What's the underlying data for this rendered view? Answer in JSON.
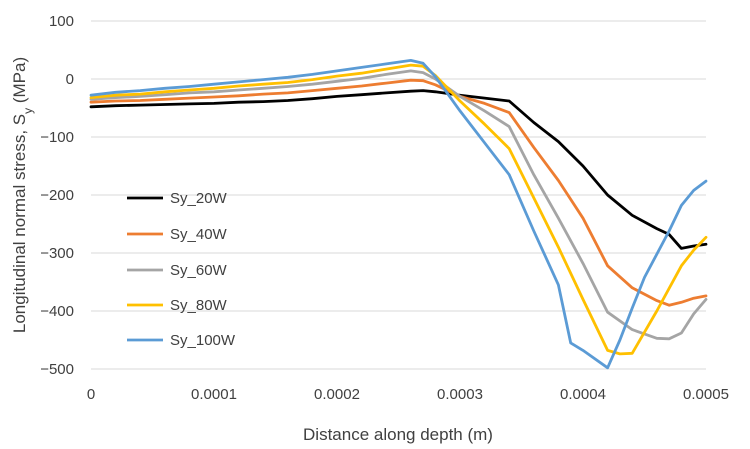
{
  "chart_data": {
    "type": "line",
    "xlabel": "Distance along depth (m)",
    "ylabel": {
      "main": "Longitudinal normal stress, S",
      "sub": "y",
      "unit": " (MPa)"
    },
    "xlim": [
      0,
      0.0005
    ],
    "ylim": [
      -500,
      100
    ],
    "x_ticks": [
      "0",
      "0.0001",
      "0.0002",
      "0.0003",
      "0.0004",
      "0.0005"
    ],
    "y_ticks": [
      "100",
      "0",
      "-100",
      "-200",
      "-300",
      "-400",
      "-500"
    ],
    "grid": "horizontal",
    "legend_position": "left",
    "series": [
      {
        "name": "Sy_20W",
        "color": "#000000",
        "points": [
          [
            0,
            -48
          ],
          [
            2e-05,
            -46
          ],
          [
            4e-05,
            -45
          ],
          [
            6e-05,
            -44
          ],
          [
            8e-05,
            -43
          ],
          [
            0.0001,
            -42
          ],
          [
            0.00012,
            -40
          ],
          [
            0.00014,
            -39
          ],
          [
            0.00016,
            -37
          ],
          [
            0.00018,
            -34
          ],
          [
            0.0002,
            -30
          ],
          [
            0.00022,
            -27
          ],
          [
            0.00024,
            -24
          ],
          [
            0.00026,
            -21
          ],
          [
            0.00027,
            -20
          ],
          [
            0.00028,
            -22
          ],
          [
            0.0003,
            -28
          ],
          [
            0.00032,
            -33
          ],
          [
            0.00034,
            -38
          ],
          [
            0.00036,
            -75
          ],
          [
            0.00038,
            -108
          ],
          [
            0.0004,
            -150
          ],
          [
            0.00042,
            -200
          ],
          [
            0.00044,
            -235
          ],
          [
            0.00046,
            -258
          ],
          [
            0.00047,
            -268
          ],
          [
            0.00048,
            -292
          ],
          [
            0.00049,
            -288
          ],
          [
            0.0005,
            -285
          ]
        ]
      },
      {
        "name": "Sy_40W",
        "color": "#ED7D31",
        "points": [
          [
            0,
            -40
          ],
          [
            2e-05,
            -38
          ],
          [
            4e-05,
            -37
          ],
          [
            6e-05,
            -35
          ],
          [
            8e-05,
            -33
          ],
          [
            0.0001,
            -31
          ],
          [
            0.00012,
            -29
          ],
          [
            0.00014,
            -26
          ],
          [
            0.00016,
            -24
          ],
          [
            0.00018,
            -20
          ],
          [
            0.0002,
            -16
          ],
          [
            0.00022,
            -12
          ],
          [
            0.00024,
            -7
          ],
          [
            0.00026,
            -2
          ],
          [
            0.00027,
            -3
          ],
          [
            0.00028,
            -10
          ],
          [
            0.0003,
            -30
          ],
          [
            0.00032,
            -42
          ],
          [
            0.00034,
            -58
          ],
          [
            0.00036,
            -118
          ],
          [
            0.00038,
            -175
          ],
          [
            0.0004,
            -240
          ],
          [
            0.00042,
            -322
          ],
          [
            0.00044,
            -360
          ],
          [
            0.00046,
            -382
          ],
          [
            0.00047,
            -390
          ],
          [
            0.00048,
            -385
          ],
          [
            0.00049,
            -378
          ],
          [
            0.0005,
            -374
          ]
        ]
      },
      {
        "name": "Sy_60W",
        "color": "#A5A5A5",
        "points": [
          [
            0,
            -35
          ],
          [
            2e-05,
            -32
          ],
          [
            4e-05,
            -30
          ],
          [
            6e-05,
            -27
          ],
          [
            8e-05,
            -24
          ],
          [
            0.0001,
            -22
          ],
          [
            0.00012,
            -19
          ],
          [
            0.00014,
            -16
          ],
          [
            0.00016,
            -13
          ],
          [
            0.00018,
            -9
          ],
          [
            0.0002,
            -4
          ],
          [
            0.00022,
            1
          ],
          [
            0.00024,
            8
          ],
          [
            0.00026,
            14
          ],
          [
            0.00027,
            11
          ],
          [
            0.00028,
            0
          ],
          [
            0.0003,
            -30
          ],
          [
            0.00032,
            -55
          ],
          [
            0.00034,
            -82
          ],
          [
            0.00036,
            -165
          ],
          [
            0.00038,
            -240
          ],
          [
            0.0004,
            -318
          ],
          [
            0.00042,
            -402
          ],
          [
            0.00044,
            -432
          ],
          [
            0.00046,
            -447
          ],
          [
            0.00047,
            -448
          ],
          [
            0.00048,
            -438
          ],
          [
            0.00049,
            -405
          ],
          [
            0.0005,
            -380
          ]
        ]
      },
      {
        "name": "Sy_80W",
        "color": "#FFC000",
        "points": [
          [
            0,
            -32
          ],
          [
            2e-05,
            -28
          ],
          [
            4e-05,
            -26
          ],
          [
            6e-05,
            -22
          ],
          [
            8e-05,
            -19
          ],
          [
            0.0001,
            -16
          ],
          [
            0.00012,
            -12
          ],
          [
            0.00014,
            -9
          ],
          [
            0.00016,
            -6
          ],
          [
            0.00018,
            -1
          ],
          [
            0.0002,
            5
          ],
          [
            0.00022,
            10
          ],
          [
            0.00024,
            17
          ],
          [
            0.00026,
            24
          ],
          [
            0.00027,
            22
          ],
          [
            0.00028,
            6
          ],
          [
            0.0003,
            -38
          ],
          [
            0.00032,
            -78
          ],
          [
            0.00034,
            -120
          ],
          [
            0.00036,
            -205
          ],
          [
            0.00038,
            -290
          ],
          [
            0.0004,
            -380
          ],
          [
            0.00042,
            -468
          ],
          [
            0.00043,
            -474
          ],
          [
            0.00044,
            -473
          ],
          [
            0.00046,
            -400
          ],
          [
            0.00048,
            -322
          ],
          [
            0.00049,
            -295
          ],
          [
            0.0005,
            -273
          ]
        ]
      },
      {
        "name": "Sy_100W",
        "color": "#5B9BD5",
        "points": [
          [
            0,
            -28
          ],
          [
            2e-05,
            -23
          ],
          [
            4e-05,
            -20
          ],
          [
            6e-05,
            -16
          ],
          [
            8e-05,
            -13
          ],
          [
            0.0001,
            -9
          ],
          [
            0.00012,
            -5
          ],
          [
            0.00014,
            -1
          ],
          [
            0.00016,
            3
          ],
          [
            0.00018,
            8
          ],
          [
            0.0002,
            14
          ],
          [
            0.00022,
            20
          ],
          [
            0.00024,
            26
          ],
          [
            0.00026,
            32
          ],
          [
            0.00027,
            27
          ],
          [
            0.00028,
            4
          ],
          [
            0.0003,
            -55
          ],
          [
            0.00032,
            -110
          ],
          [
            0.00034,
            -165
          ],
          [
            0.00036,
            -262
          ],
          [
            0.00038,
            -355
          ],
          [
            0.00039,
            -455
          ],
          [
            0.0004,
            -468
          ],
          [
            0.00042,
            -498
          ],
          [
            0.00043,
            -450
          ],
          [
            0.00044,
            -395
          ],
          [
            0.00045,
            -342
          ],
          [
            0.00047,
            -262
          ],
          [
            0.00048,
            -218
          ],
          [
            0.00049,
            -192
          ],
          [
            0.0005,
            -176
          ]
        ]
      }
    ]
  }
}
